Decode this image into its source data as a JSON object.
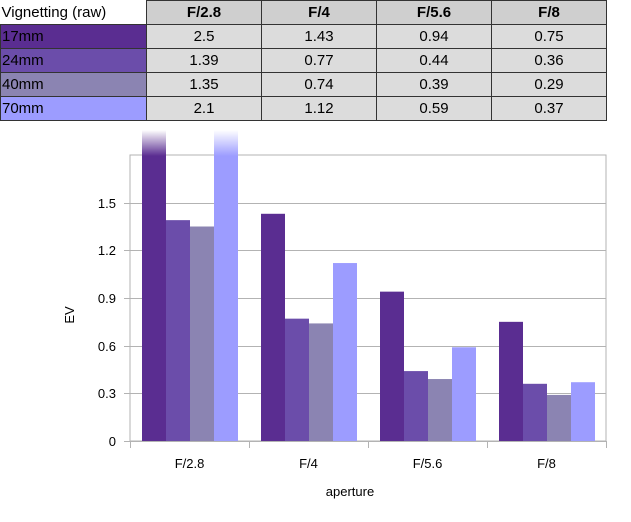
{
  "chart_data": {
    "type": "bar",
    "table_corner_label": "Vignetting (raw)",
    "categories": [
      "F/2.8",
      "F/4",
      "F/5.6",
      "F/8"
    ],
    "series": [
      {
        "name": "17mm",
        "values": [
          2.5,
          1.43,
          0.94,
          0.75
        ],
        "value_labels": [
          "2.5",
          "1.43",
          "0.94",
          "0.75"
        ],
        "color": "#5a2d91"
      },
      {
        "name": "24mm",
        "values": [
          1.39,
          0.77,
          0.44,
          0.36
        ],
        "value_labels": [
          "1.39",
          "0.77",
          "0.44",
          "0.36"
        ],
        "color": "#6b4daa"
      },
      {
        "name": "40mm",
        "values": [
          1.35,
          0.74,
          0.39,
          0.29
        ],
        "value_labels": [
          "1.35",
          "0.74",
          "0.39",
          "0.29"
        ],
        "color": "#8b84b2"
      },
      {
        "name": "70mm",
        "values": [
          2.1,
          1.12,
          0.59,
          0.37
        ],
        "value_labels": [
          "2.1",
          "1.12",
          "0.59",
          "0.37"
        ],
        "color": "#9c9cff"
      }
    ],
    "xlabel": "aperture",
    "ylabel": "EV",
    "ylim": [
      0,
      1.8
    ],
    "yticks": [
      "0",
      "0.3",
      "0.6",
      "0.9",
      "1.2",
      "1.5"
    ],
    "grid": true,
    "legend": "table above chart"
  }
}
